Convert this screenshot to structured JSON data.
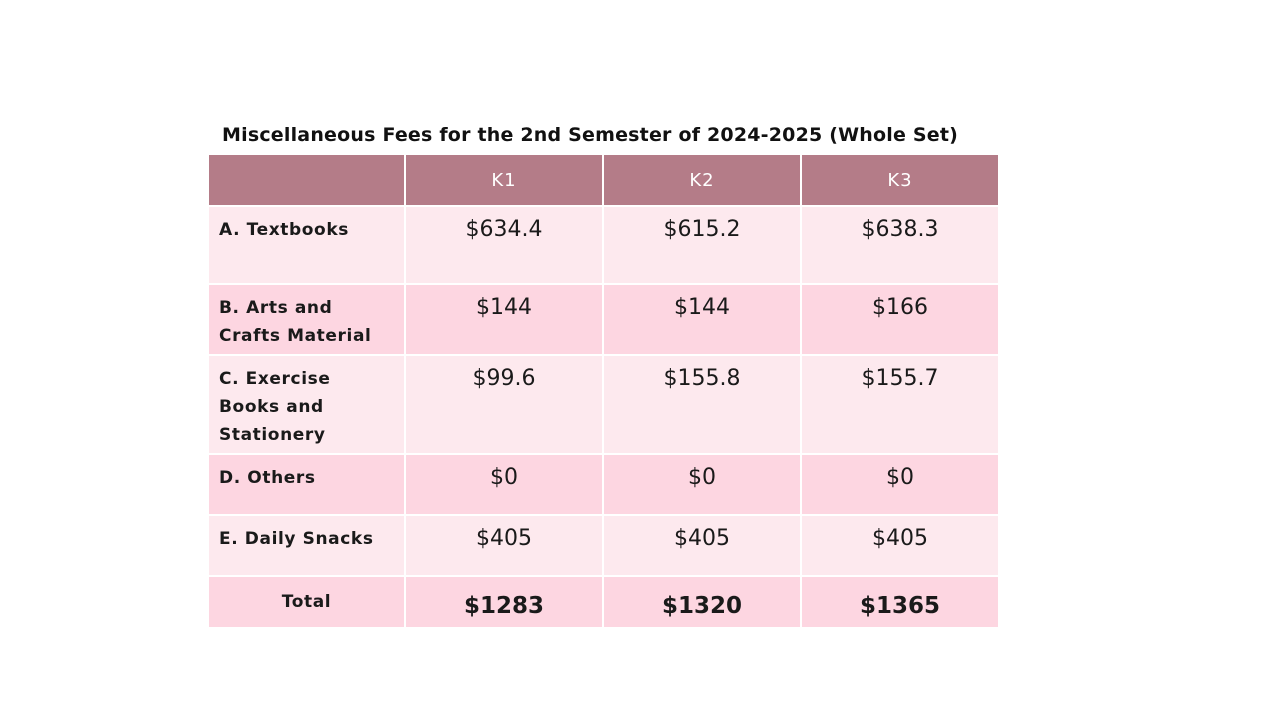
{
  "title": "Miscellaneous Fees for the 2nd Semester of 2024-2025 (Whole Set)",
  "table": {
    "headers": [
      "",
      "K1",
      "K2",
      "K3"
    ],
    "rows": [
      {
        "label": "A. Textbooks",
        "values": [
          "$634.4",
          "$615.2",
          "$638.3"
        ]
      },
      {
        "label": "B. Arts and Crafts Material",
        "values": [
          "$144",
          "$144",
          "$166"
        ]
      },
      {
        "label": "C. Exercise Books and Stationery",
        "values": [
          "$99.6",
          "$155.8",
          "$155.7"
        ]
      },
      {
        "label": "D. Others",
        "values": [
          "$0",
          "$0",
          "$0"
        ]
      },
      {
        "label": "E. Daily Snacks",
        "values": [
          "$405",
          "$405",
          "$405"
        ]
      }
    ],
    "total": {
      "label": "Total",
      "values": [
        "$1283",
        "$1320",
        "$1365"
      ]
    }
  },
  "colors": {
    "header_bg": "#b47c88",
    "row_light": "#fde9ee",
    "row_dark": "#fdd6e1"
  }
}
